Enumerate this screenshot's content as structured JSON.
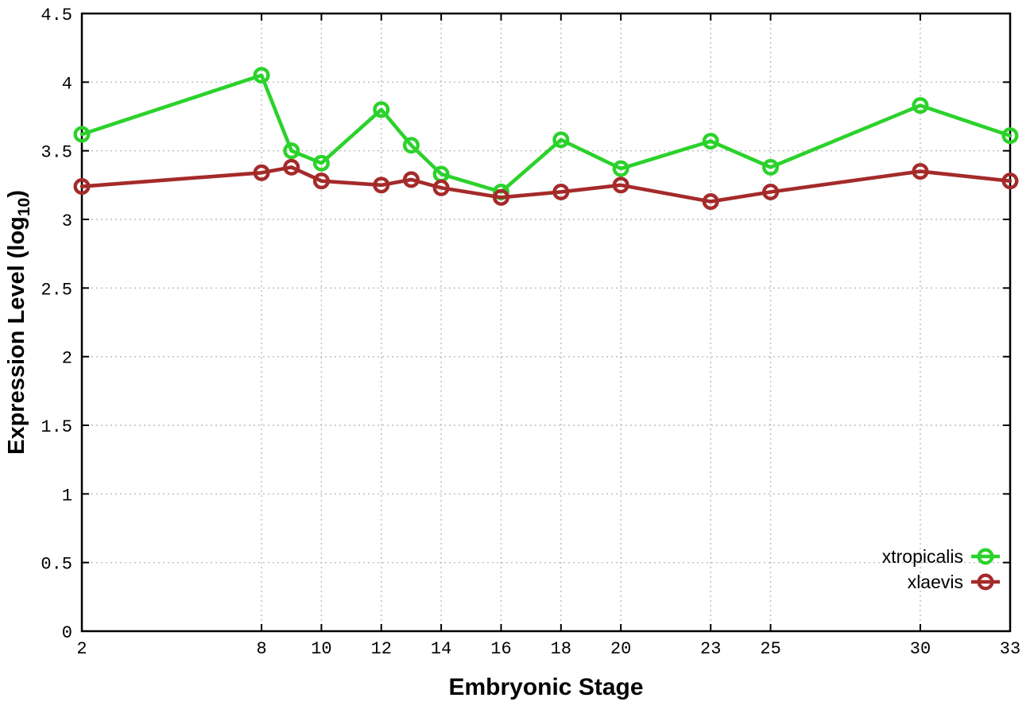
{
  "chart_data": {
    "type": "line",
    "title": "",
    "xlabel": "Embryonic Stage",
    "ylabel": "Expression Level (log10)",
    "ylabel_parts": {
      "main": "Expression Level (log",
      "sub": "10",
      "end": ")"
    },
    "x": [
      2,
      8,
      9,
      10,
      12,
      13,
      14,
      16,
      18,
      20,
      23,
      25,
      30,
      33
    ],
    "xticks": [
      2,
      8,
      10,
      12,
      14,
      16,
      18,
      20,
      23,
      25,
      30,
      33
    ],
    "yticks": [
      0,
      0.5,
      1,
      1.5,
      2,
      2.5,
      3,
      3.5,
      4,
      4.5
    ],
    "ytick_labels": [
      "0",
      "0.5",
      "1",
      "1.5",
      "2",
      "2.5",
      "3",
      "3.5",
      "4",
      "4.5"
    ],
    "xlim": [
      2,
      33
    ],
    "ylim": [
      0,
      4.5
    ],
    "grid": true,
    "legend_position": "inside-bottom-right",
    "series": [
      {
        "name": "xtropicalis",
        "color": "#2bd22b",
        "marker": "open-circle",
        "values": [
          3.62,
          4.05,
          3.5,
          3.41,
          3.8,
          3.54,
          3.33,
          3.2,
          3.58,
          3.37,
          3.57,
          3.38,
          3.83,
          3.61
        ]
      },
      {
        "name": "xlaevis",
        "color": "#a52a2a",
        "marker": "open-circle",
        "values": [
          3.24,
          3.34,
          3.38,
          3.28,
          3.25,
          3.29,
          3.23,
          3.16,
          3.2,
          3.25,
          3.13,
          3.2,
          3.35,
          3.28
        ]
      }
    ],
    "colors": {
      "grid": "#bcbcbc",
      "axis": "#000000",
      "background": "#ffffff"
    }
  }
}
